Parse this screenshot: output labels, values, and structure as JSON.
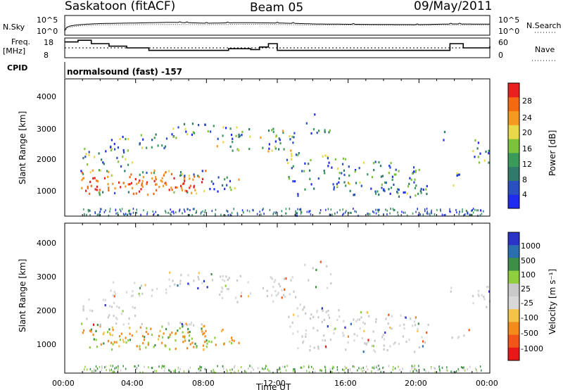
{
  "header": {
    "station": "Saskatoon (fitACF)",
    "beam": "Beam 05",
    "date": "09/May/2011"
  },
  "top_panels": {
    "nsky_label": "N.Sky",
    "nsky_ticks": [
      "10^5",
      "10^0"
    ],
    "nsearch_label": "N.Search",
    "nsearch_ticks": [
      "10^5",
      "10^0"
    ],
    "freq_label": "Freq.",
    "freq_unit": "[MHz]",
    "freq_ticks": [
      "18",
      "8"
    ],
    "nave_label": "Nave",
    "nave_ticks": [
      "60",
      "0"
    ],
    "cpid_label": "CPID",
    "cpid_value": "normalsound (fast) -157"
  },
  "colors": {
    "power_scale": [
      "#1f2cf0",
      "#2a4fbf",
      "#2f7a6a",
      "#3a9a5a",
      "#7cc23a",
      "#e8d84a",
      "#f59a1e",
      "#f46a12",
      "#e82020"
    ],
    "velocity_scale": [
      "#2c34c8",
      "#2c6fb0",
      "#3d8f48",
      "#8fce3e",
      "#c9c9c9",
      "#d8d8d8",
      "#f6c34a",
      "#f28a1c",
      "#f25518",
      "#e81818"
    ]
  },
  "chart_data": [
    {
      "type": "line",
      "title": "N.Sky / N.Search",
      "x": [
        "00:00",
        "02:00",
        "04:00",
        "06:00",
        "08:00",
        "10:00",
        "12:00",
        "14:00",
        "16:00",
        "18:00",
        "20:00",
        "22:00",
        "24:00"
      ],
      "series": [
        {
          "name": "N.Sky",
          "values": [
            10,
            2000,
            3000,
            5000,
            2500,
            4000,
            3000,
            1500,
            1200,
            1000,
            900,
            1500,
            1300
          ]
        },
        {
          "name": "N.Search",
          "values": [
            8,
            800,
            900,
            1000,
            900,
            1100,
            1000,
            700,
            650,
            600,
            550,
            700,
            650
          ]
        }
      ],
      "yscale": "log"
    },
    {
      "type": "line",
      "title": "Freq. / Nave",
      "x": [
        "00:00",
        "00:45",
        "01:30",
        "02:30",
        "03:30",
        "04:45",
        "08:30",
        "09:15",
        "10:30",
        "11:00",
        "11:30",
        "12:00",
        "21:00",
        "21:45",
        "22:30",
        "24:00"
      ],
      "series": [
        {
          "name": "Freq.",
          "values": [
            16.5,
            17.5,
            15.5,
            14.0,
            13.0,
            11.5,
            11.5,
            12.5,
            12.0,
            13.5,
            15.5,
            11.5,
            11.5,
            15.5,
            13.0,
            14.0
          ]
        },
        {
          "name": "Nave",
          "values": [
            30,
            30,
            30,
            30,
            30,
            30,
            30,
            30,
            30,
            30,
            30,
            30,
            30,
            30,
            30,
            30
          ]
        }
      ],
      "ylim_freq": [
        8,
        18
      ],
      "ylim_nave": [
        0,
        60
      ]
    },
    {
      "type": "heatmap",
      "ylabel": "Slant Range [km]",
      "colorbar_label": "Power [dB]",
      "colorbar_ticks": [
        "28",
        "24",
        "20",
        "16",
        "12",
        "8",
        "4"
      ],
      "clim": [
        0,
        30
      ],
      "ylim": [
        180,
        4600
      ],
      "yticks": [
        "1000",
        "2000",
        "3000",
        "4000"
      ],
      "x_range_hours": [
        0,
        24
      ]
    },
    {
      "type": "heatmap",
      "ylabel": "Slant Range [km]",
      "xlabel": "Time UT",
      "colorbar_label": "Velocity [m s⁻¹]",
      "colorbar_ticks": [
        "1000",
        "500",
        "100",
        "25",
        "-25",
        "-100",
        "-500",
        "-1000"
      ],
      "clim": [
        -1000,
        1000
      ],
      "ylim": [
        180,
        4600
      ],
      "yticks": [
        "1000",
        "2000",
        "3000",
        "4000"
      ],
      "xticks": [
        "00:00",
        "04:00",
        "08:00",
        "12:00",
        "16:00",
        "20:00",
        "00:00"
      ]
    }
  ]
}
